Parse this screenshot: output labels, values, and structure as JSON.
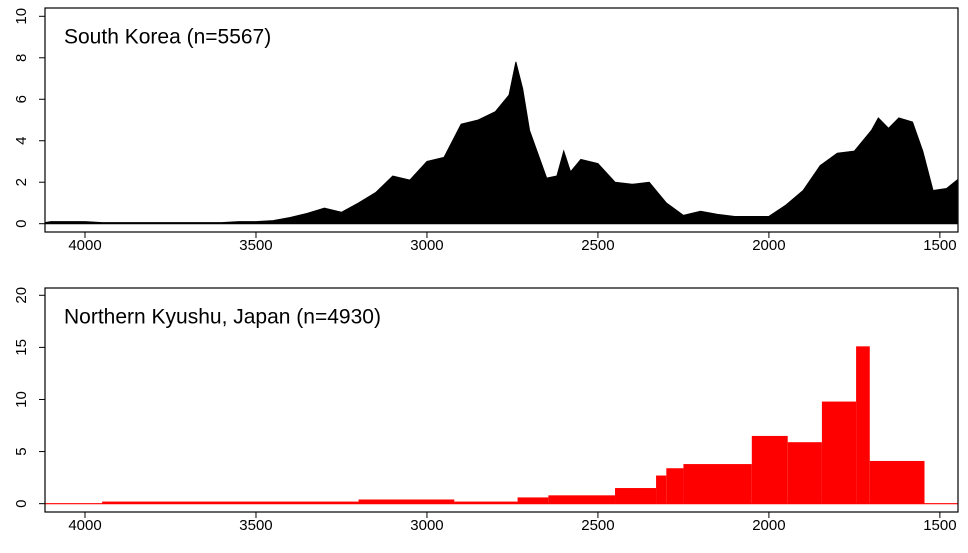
{
  "chart_data": [
    {
      "type": "area",
      "title": "South Korea (n=5567)",
      "color": "#000000",
      "x": [
        4117,
        4100,
        4050,
        4000,
        3950,
        3900,
        3800,
        3700,
        3600,
        3550,
        3500,
        3450,
        3400,
        3350,
        3300,
        3250,
        3200,
        3150,
        3100,
        3050,
        3000,
        2950,
        2900,
        2850,
        2800,
        2760,
        2740,
        2720,
        2700,
        2650,
        2620,
        2600,
        2580,
        2550,
        2500,
        2450,
        2400,
        2350,
        2300,
        2250,
        2200,
        2150,
        2100,
        2050,
        2000,
        1950,
        1900,
        1850,
        1800,
        1750,
        1700,
        1680,
        1650,
        1620,
        1580,
        1550,
        1520,
        1480,
        1450
      ],
      "values": [
        0.05,
        0.1,
        0.1,
        0.1,
        0.05,
        0.05,
        0.05,
        0.05,
        0.05,
        0.1,
        0.1,
        0.15,
        0.3,
        0.5,
        0.75,
        0.55,
        1.0,
        1.5,
        2.3,
        2.1,
        3.0,
        3.2,
        4.8,
        5.0,
        5.4,
        6.2,
        7.8,
        6.5,
        4.5,
        2.2,
        2.3,
        3.5,
        2.5,
        3.1,
        2.9,
        2.0,
        1.9,
        2.0,
        1.0,
        0.4,
        0.6,
        0.45,
        0.35,
        0.35,
        0.35,
        0.9,
        1.6,
        2.8,
        3.4,
        3.5,
        4.5,
        5.1,
        4.6,
        5.1,
        4.9,
        3.5,
        1.6,
        1.7,
        2.1
      ],
      "xlim": [
        4117,
        1447
      ],
      "xticks": [
        4000,
        3500,
        3000,
        2500,
        2000,
        1500
      ],
      "ylim": [
        -0.4,
        10.4
      ],
      "yticks": [
        0,
        2,
        4,
        6,
        8,
        10
      ]
    },
    {
      "type": "histogram",
      "title": "Northern Kyushu, Japan (n=4930)",
      "color": "#ff0000",
      "bins": [
        3950,
        3200,
        2920,
        2735,
        2645,
        2450,
        2330,
        2300,
        2250,
        2050,
        1945,
        1845,
        1745,
        1705,
        1545
      ],
      "values": [
        0.2,
        0.4,
        0.2,
        0.6,
        0.8,
        1.5,
        2.7,
        3.4,
        3.8,
        6.5,
        5.9,
        9.8,
        15.1,
        4.1
      ],
      "xlim": [
        4117,
        1447
      ],
      "xticks": [
        4000,
        3500,
        3000,
        2500,
        2000,
        1500
      ],
      "ylim": [
        -0.8,
        20.7
      ],
      "yticks": [
        0,
        5,
        10,
        15,
        20
      ]
    }
  ]
}
